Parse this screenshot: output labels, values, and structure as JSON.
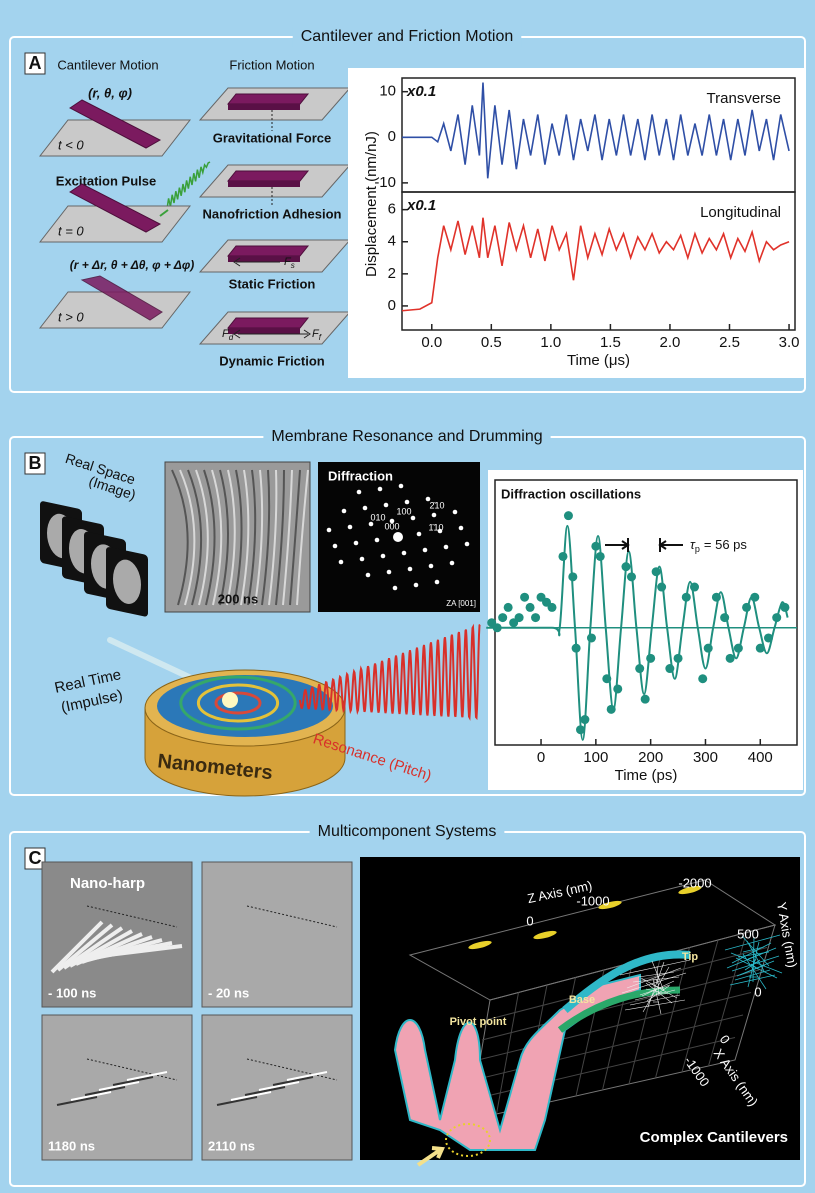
{
  "panel_a": {
    "label": "A",
    "title": "Cantilever and Friction Motion",
    "cantilever": {
      "heading": "Cantilever Motion",
      "coords_initial": "(r, θ, φ)",
      "t_before": "t < 0",
      "pulse": "Excitation Pulse",
      "t_zero": "t = 0",
      "coords_final": "(r + Δr, θ + Δθ, φ + Δφ)",
      "t_after": "t > 0"
    },
    "friction": {
      "heading": "Friction Motion",
      "steps": [
        "Gravitational Force",
        "Nanofriction Adhesion",
        "Static Friction",
        "Dynamic Friction"
      ],
      "forces": [
        {
          "symbol": "F",
          "sub": "s"
        },
        {
          "symbol": "F",
          "sub": "d"
        },
        {
          "symbol": "F",
          "sub": "f"
        }
      ]
    }
  },
  "panel_b": {
    "label": "B",
    "title": "Membrane Resonance and Drumming",
    "real_space": [
      "Real Space",
      "(Image)"
    ],
    "image_time": "200 ns",
    "diffraction": {
      "title": "Diffraction",
      "spots": [
        "010",
        "100",
        "2̄10",
        "000",
        "1̄10"
      ],
      "zone": "ZA [001]"
    },
    "real_time": [
      "Real Time",
      "(Impulse)"
    ],
    "drum": "Nanometers",
    "resonance": "Resonance (Pitch)"
  },
  "panel_c": {
    "label": "C",
    "title": "Multicomponent Systems",
    "frames": [
      {
        "label": "Nano-harp",
        "time": "- 100 ns"
      },
      {
        "time": "- 20 ns"
      },
      {
        "time": "1180 ns"
      },
      {
        "time": "2110 ns"
      }
    ],
    "model": {
      "z_axis": "Z Axis (nm)",
      "z_ticks": [
        "-2000",
        "-1000",
        "0"
      ],
      "y_axis": "Y Axis (nm)",
      "y_ticks": [
        "500",
        "0"
      ],
      "x_axis": "X Axis (nm)",
      "x_ticks": [
        "0",
        "-1000"
      ],
      "parts": [
        "Tip",
        "Base",
        "Pivot point"
      ],
      "caption": "Complex Cantilevers"
    }
  },
  "chart_data": [
    {
      "type": "line",
      "scale_note": "x0.1",
      "ylabel": "Displacement (nm/nJ)",
      "xlim": [
        -0.25,
        3.05
      ],
      "ylim": [
        -12,
        13
      ],
      "yticks": [
        -10,
        0,
        10
      ],
      "series": [
        {
          "name": "Transverse",
          "color": "#2f4fa6",
          "x": [
            -0.25,
            -0.1,
            0.0,
            0.05,
            0.1,
            0.16,
            0.22,
            0.28,
            0.34,
            0.4,
            0.43,
            0.47,
            0.53,
            0.59,
            0.65,
            0.71,
            0.77,
            0.83,
            0.89,
            0.95,
            1.01,
            1.07,
            1.13,
            1.19,
            1.25,
            1.31,
            1.37,
            1.43,
            1.49,
            1.55,
            1.61,
            1.67,
            1.73,
            1.79,
            1.85,
            1.91,
            1.97,
            2.03,
            2.09,
            2.15,
            2.21,
            2.27,
            2.33,
            2.39,
            2.45,
            2.51,
            2.57,
            2.63,
            2.69,
            2.75,
            2.81,
            2.87,
            2.93,
            3.0
          ],
          "values": [
            0,
            0,
            0,
            -1,
            3,
            -3,
            5,
            -6,
            7,
            -4,
            12,
            -9,
            7,
            -6,
            6,
            -7,
            4,
            -4,
            5,
            -6,
            3,
            -4,
            5,
            -5,
            4,
            -3,
            5,
            -5,
            4,
            -4,
            5,
            -4,
            4,
            -5,
            5,
            -4,
            4,
            -5,
            5,
            -4,
            3,
            -4,
            5,
            -4,
            4,
            -5,
            4,
            -4,
            6,
            -3,
            4,
            -5,
            5,
            -3
          ]
        }
      ]
    },
    {
      "type": "line",
      "scale_note": "x0.1",
      "xlabel": "Time (μs)",
      "xlim": [
        -0.25,
        3.05
      ],
      "ylim": [
        -1.5,
        7.1
      ],
      "yticks": [
        0,
        2,
        4,
        6
      ],
      "xticks": [
        {
          "value": 0,
          "label": "0.0"
        },
        0.5,
        {
          "value": 1,
          "label": "1.0"
        },
        1.5,
        {
          "value": 2,
          "label": "2.0"
        },
        2.5,
        {
          "value": 3,
          "label": "3.0"
        }
      ],
      "series": [
        {
          "name": "Longitudinal",
          "color": "#e0322a",
          "x": [
            -0.25,
            -0.1,
            0.0,
            0.05,
            0.1,
            0.16,
            0.22,
            0.28,
            0.34,
            0.4,
            0.43,
            0.47,
            0.53,
            0.59,
            0.65,
            0.71,
            0.77,
            0.83,
            0.89,
            0.95,
            1.01,
            1.07,
            1.13,
            1.19,
            1.25,
            1.31,
            1.37,
            1.43,
            1.49,
            1.55,
            1.61,
            1.67,
            1.73,
            1.79,
            1.85,
            1.91,
            1.97,
            2.03,
            2.09,
            2.15,
            2.21,
            2.27,
            2.33,
            2.39,
            2.45,
            2.51,
            2.57,
            2.63,
            2.69,
            2.75,
            2.81,
            2.87,
            2.93,
            3.0
          ],
          "values": [
            -0.3,
            -0.2,
            0.2,
            3,
            5,
            3.5,
            5.3,
            3.2,
            5,
            3,
            5.5,
            3,
            5,
            2.5,
            5.2,
            3.5,
            5,
            3,
            4.8,
            2.8,
            5,
            3.5,
            4.5,
            1.6,
            5,
            3,
            4.5,
            3.2,
            4.8,
            3.5,
            4.5,
            3,
            4.3,
            3.5,
            4.5,
            3.3,
            4,
            3.5,
            4.4,
            3,
            4.5,
            3.3,
            4.2,
            3.5,
            4.5,
            3,
            4.2,
            3.4,
            4.6,
            2.8,
            4,
            3.5,
            3.8,
            4
          ]
        }
      ]
    },
    {
      "type": "scatter",
      "title": "Diffraction oscillations",
      "xlabel": "Time (ps)",
      "xlim": [
        -84,
        467
      ],
      "ylim": [
        -1.15,
        1.45
      ],
      "xticks": [
        0,
        100,
        200,
        300,
        400
      ],
      "baseline": 0,
      "annotation": {
        "symbol": "τ",
        "subscript": "p",
        "text": "= 56 ps"
      },
      "series": [
        {
          "color": "#1f8f7f",
          "x": [
            -90,
            -80,
            -70,
            -60,
            -50,
            -40,
            -30,
            -20,
            -10,
            0,
            10,
            20,
            40,
            50,
            58,
            64,
            72,
            80,
            92,
            100,
            108,
            120,
            128,
            140,
            155,
            165,
            180,
            190,
            200,
            210,
            220,
            235,
            250,
            265,
            280,
            295,
            305,
            320,
            335,
            345,
            360,
            375,
            390,
            400,
            415,
            430,
            445
          ],
          "values": [
            0.05,
            0,
            0.1,
            0.2,
            0.05,
            0.1,
            0.3,
            0.2,
            0.1,
            0.3,
            0.25,
            0.2,
            0.7,
            1.1,
            0.5,
            -0.2,
            -1.0,
            -0.9,
            -0.1,
            0.8,
            0.7,
            -0.5,
            -0.8,
            -0.6,
            0.6,
            0.5,
            -0.4,
            -0.7,
            -0.3,
            0.55,
            0.4,
            -0.4,
            -0.3,
            0.3,
            0.4,
            -0.5,
            -0.2,
            0.3,
            0.1,
            -0.3,
            -0.2,
            0.2,
            0.3,
            -0.2,
            -0.1,
            0.1,
            0.2
          ]
        }
      ],
      "fit": {
        "color": "#1f8f7f",
        "x": [
          -100,
          20,
          34,
          48,
          62,
          76,
          90,
          104,
          118,
          132,
          146,
          160,
          174,
          188,
          202,
          216,
          230,
          244,
          258,
          272,
          286,
          300,
          314,
          328,
          342,
          356,
          370,
          384,
          398,
          412,
          426,
          440,
          450
        ],
        "values": [
          0,
          0,
          0,
          1.0,
          0,
          -1.1,
          0,
          0.9,
          0,
          -0.8,
          0,
          0.75,
          0,
          -0.65,
          0,
          0.6,
          0,
          -0.5,
          0,
          0.45,
          0,
          -0.4,
          0,
          0.35,
          0,
          -0.3,
          0,
          0.3,
          0,
          -0.25,
          0,
          0.25,
          0.1
        ]
      }
    }
  ]
}
